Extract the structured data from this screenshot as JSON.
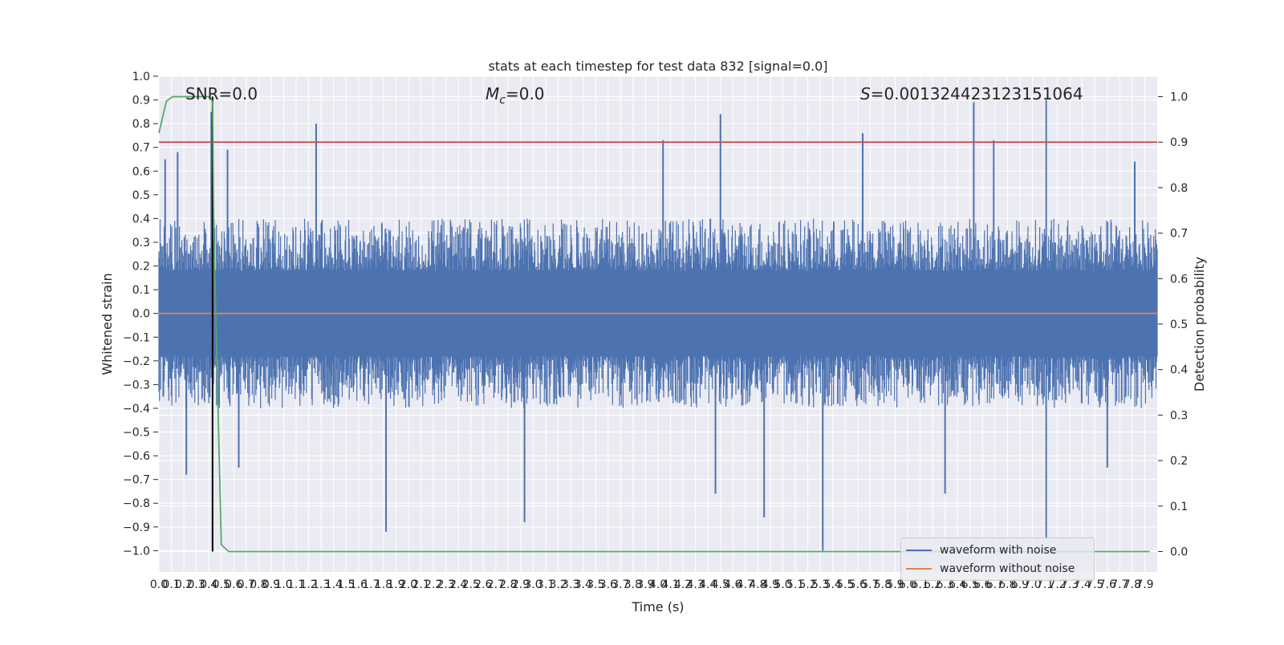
{
  "chart_data": {
    "type": "line",
    "title": "stats at each timestep for test data 832 [signal=0.0]",
    "xlabel": "Time (s)",
    "ylabel": "Whitened strain",
    "y2label": "Detection probability",
    "xlim": [
      0.0,
      8.0
    ],
    "ylim": [
      -1.09,
      1.0
    ],
    "y2lim": [
      -0.045,
      1.045
    ],
    "xticks": [
      0.0,
      0.1,
      0.2,
      0.3,
      0.4,
      0.5,
      0.6,
      0.7,
      0.8,
      0.9,
      1.0,
      1.1,
      1.2,
      1.3,
      1.4,
      1.5,
      1.6,
      1.7,
      1.8,
      1.9,
      2.0,
      2.1,
      2.2,
      2.3,
      2.4,
      2.5,
      2.6,
      2.7,
      2.8,
      2.9,
      3.0,
      3.1,
      3.2,
      3.3,
      3.4,
      3.5,
      3.6,
      3.7,
      3.8,
      3.9,
      4.0,
      4.1,
      4.2,
      4.3,
      4.4,
      4.5,
      4.6,
      4.7,
      4.8,
      4.9,
      5.0,
      5.1,
      5.2,
      5.3,
      5.4,
      5.5,
      5.6,
      5.7,
      5.8,
      5.9,
      6.0,
      6.1,
      6.2,
      6.3,
      6.4,
      6.5,
      6.6,
      6.7,
      6.8,
      6.9,
      7.0,
      7.1,
      7.2,
      7.3,
      7.4,
      7.5,
      7.6,
      7.7,
      7.8,
      7.9
    ],
    "yticks": [
      -1.0,
      -0.9,
      -0.8,
      -0.7,
      -0.6,
      -0.5,
      -0.4,
      -0.3,
      -0.2,
      -0.1,
      0.0,
      0.1,
      0.2,
      0.3,
      0.4,
      0.5,
      0.6,
      0.7,
      0.8,
      0.9,
      1.0
    ],
    "y2ticks": [
      0.0,
      0.1,
      0.2,
      0.3,
      0.4,
      0.5,
      0.6,
      0.7,
      0.8,
      0.9,
      1.0
    ],
    "grid": true,
    "legend_position": "lower right",
    "annotations": {
      "snr": "SNR=0.0",
      "mc_symbol": "M",
      "mc_sub": "c",
      "mc_value": "=0.0",
      "s_symbol": "S",
      "s_value": "=0.001324423123151064"
    },
    "series": [
      {
        "name": "waveform with noise",
        "axis": "left",
        "color": "#4c72b0",
        "envelope_note_free": true,
        "peak_points": [
          {
            "x": 0.05,
            "y": 0.65
          },
          {
            "x": 0.15,
            "y": 0.68
          },
          {
            "x": 0.42,
            "y": 0.85
          },
          {
            "x": 0.55,
            "y": 0.69
          },
          {
            "x": 1.26,
            "y": 0.8
          },
          {
            "x": 4.04,
            "y": 0.73
          },
          {
            "x": 4.5,
            "y": 0.84
          },
          {
            "x": 5.64,
            "y": 0.76
          },
          {
            "x": 6.53,
            "y": 0.89
          },
          {
            "x": 6.69,
            "y": 0.73
          },
          {
            "x": 7.11,
            "y": 0.9
          },
          {
            "x": 7.82,
            "y": 0.64
          },
          {
            "x": 0.22,
            "y": -0.68
          },
          {
            "x": 0.64,
            "y": -0.65
          },
          {
            "x": 1.82,
            "y": -0.92
          },
          {
            "x": 2.93,
            "y": -0.88
          },
          {
            "x": 4.46,
            "y": -0.76
          },
          {
            "x": 4.85,
            "y": -0.86
          },
          {
            "x": 5.32,
            "y": -1.0
          },
          {
            "x": 6.3,
            "y": -0.76
          },
          {
            "x": 7.11,
            "y": -0.95
          },
          {
            "x": 7.6,
            "y": -0.65
          }
        ]
      },
      {
        "name": "waveform without noise",
        "axis": "left",
        "color": "#dd8452",
        "x": [
          0.0,
          8.0
        ],
        "y": [
          0.0,
          0.0
        ]
      },
      {
        "name": "detection probability",
        "axis": "right",
        "color": "#55a868",
        "x": [
          0.0,
          0.06,
          0.11,
          0.2,
          0.3,
          0.4,
          0.43,
          0.44,
          0.5,
          0.56,
          7.94
        ],
        "y": [
          0.92,
          0.99,
          1.0,
          1.0,
          1.0,
          1.0,
          0.99,
          0.7,
          0.015,
          0.0,
          0.0
        ]
      }
    ],
    "reference_lines": {
      "threshold_y2": 0.9,
      "threshold_color": "#c44e52",
      "marker_x": 0.43,
      "marker_color": "#000000"
    }
  }
}
